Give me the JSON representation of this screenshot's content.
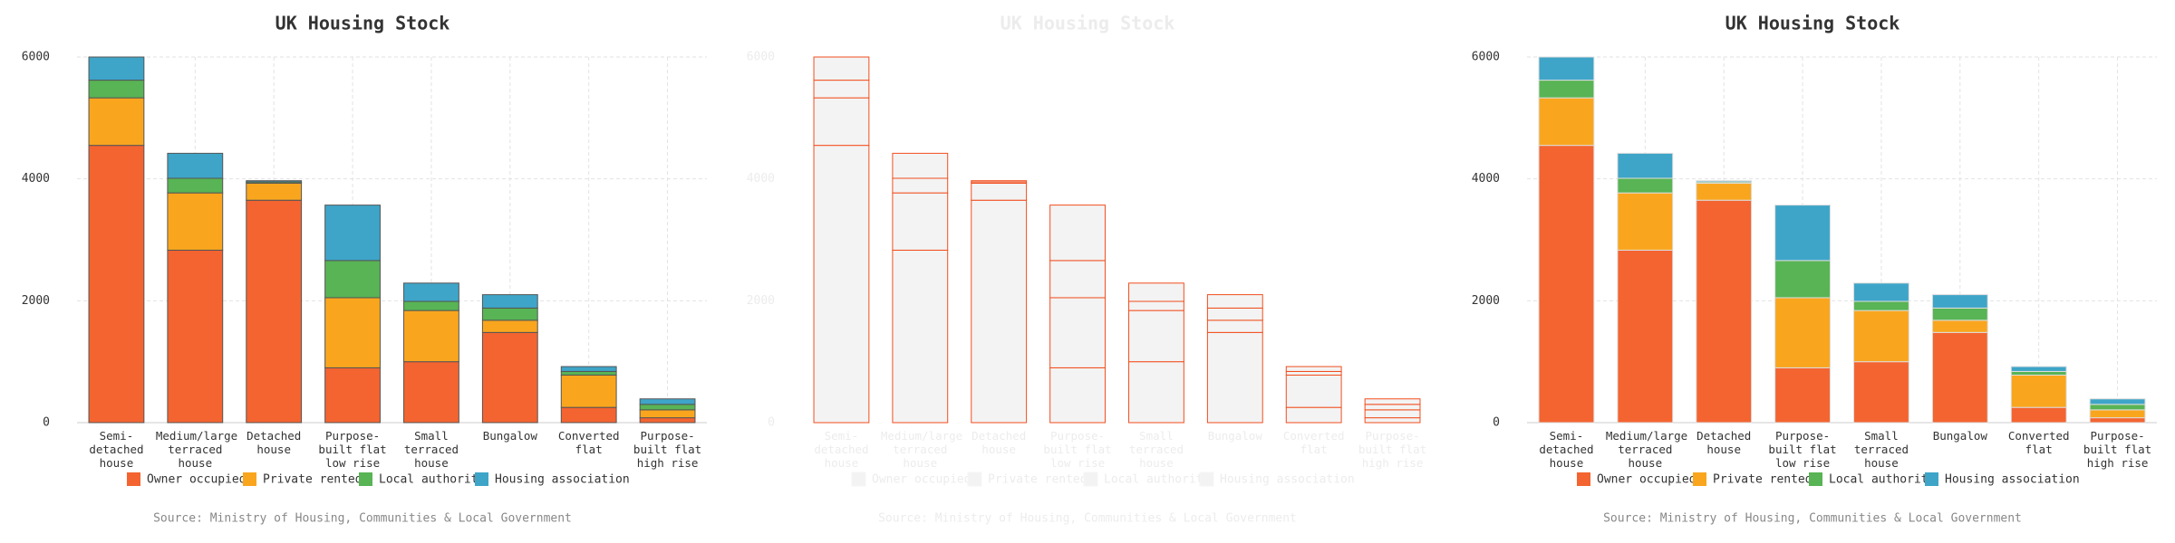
{
  "chart_data": [
    {
      "type": "stacked_bar",
      "title": "UK Housing Stock",
      "source": "Source: Ministry of Housing, Communities & Local Government",
      "categories": [
        "Semi-detached house",
        "Medium/large terraced house",
        "Detached house",
        "Purpose-built flat low rise",
        "Small terraced house",
        "Bungalow",
        "Converted flat",
        "Purpose-built flat high rise"
      ],
      "series": [
        {
          "name": "Owner occupied",
          "color": "#f46430",
          "values": [
            4550,
            2830,
            3650,
            900,
            1000,
            1480,
            250,
            80
          ]
        },
        {
          "name": "Private rented",
          "color": "#f9a61e",
          "values": [
            780,
            940,
            280,
            1150,
            840,
            200,
            530,
            130
          ]
        },
        {
          "name": "Local authority",
          "color": "#58b454",
          "values": [
            290,
            240,
            20,
            610,
            150,
            200,
            60,
            90
          ]
        },
        {
          "name": "Housing association",
          "color": "#3ea5c8",
          "values": [
            380,
            410,
            20,
            910,
            300,
            220,
            80,
            90
          ]
        }
      ],
      "ylim": [
        0,
        6000
      ],
      "yticks": [
        0,
        2000,
        4000,
        6000
      ],
      "grid": true,
      "legend": "bottom",
      "stroke": "#555555",
      "text_color": "#333333"
    },
    {
      "type": "stacked_bar",
      "title": "UK Housing Stock",
      "source": "Source: Ministry of Housing, Communities & Local Government",
      "categories": [
        "Semi-detached house",
        "Medium/large terraced house",
        "Detached house",
        "Purpose-built flat low rise",
        "Small terraced house",
        "Bungalow",
        "Converted flat",
        "Purpose-built flat high rise"
      ],
      "series": [
        {
          "name": "Owner occupied",
          "color": "#f3f3f3",
          "values": [
            4550,
            2830,
            3650,
            900,
            1000,
            1480,
            250,
            80
          ]
        },
        {
          "name": "Private rented",
          "color": "#f3f3f3",
          "values": [
            780,
            940,
            280,
            1150,
            840,
            200,
            530,
            130
          ]
        },
        {
          "name": "Local authority",
          "color": "#f3f3f3",
          "values": [
            290,
            240,
            20,
            610,
            150,
            200,
            60,
            90
          ]
        },
        {
          "name": "Housing association",
          "color": "#f3f3f3",
          "values": [
            380,
            410,
            20,
            910,
            300,
            220,
            80,
            90
          ]
        }
      ],
      "ylim": [
        0,
        6000
      ],
      "yticks": [
        0,
        2000,
        4000,
        6000
      ],
      "grid": false,
      "legend": "bottom",
      "stroke": "#f24e1e",
      "text_color": "#ececec"
    },
    {
      "type": "stacked_bar",
      "title": "UK Housing Stock",
      "source": "Source: Ministry of Housing, Communities & Local Government",
      "categories": [
        "Semi-detached house",
        "Medium/large terraced house",
        "Detached house",
        "Purpose-built flat low rise",
        "Small terraced house",
        "Bungalow",
        "Converted flat",
        "Purpose-built flat high rise"
      ],
      "series": [
        {
          "name": "Owner occupied",
          "color": "#f46430",
          "values": [
            4550,
            2830,
            3650,
            900,
            1000,
            1480,
            250,
            80
          ]
        },
        {
          "name": "Private rented",
          "color": "#f9a61e",
          "values": [
            780,
            940,
            280,
            1150,
            840,
            200,
            530,
            130
          ]
        },
        {
          "name": "Local authority",
          "color": "#58b454",
          "values": [
            290,
            240,
            20,
            610,
            150,
            200,
            60,
            90
          ]
        },
        {
          "name": "Housing association",
          "color": "#3ea5c8",
          "values": [
            380,
            410,
            20,
            910,
            300,
            220,
            80,
            90
          ]
        }
      ],
      "ylim": [
        0,
        6000
      ],
      "yticks": [
        0,
        2000,
        4000,
        6000
      ],
      "grid": true,
      "legend": "bottom",
      "stroke": "#dddddd",
      "text_color": "#333333"
    }
  ]
}
